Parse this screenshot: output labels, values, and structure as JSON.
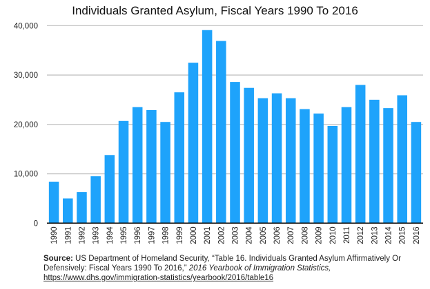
{
  "chart_data": {
    "type": "bar",
    "title": "Individuals Granted Asylum, Fiscal Years 1990 To 2016",
    "xlabel": "",
    "ylabel": "",
    "ylim": [
      0,
      40000
    ],
    "yticks": [
      "0",
      "10,000",
      "20,000",
      "30,000",
      "40,000"
    ],
    "grid": true,
    "color": "#1ea3fb",
    "categories": [
      "1990",
      "1991",
      "1992",
      "1993",
      "1994",
      "1995",
      "1996",
      "1997",
      "1998",
      "1999",
      "2000",
      "2001",
      "2002",
      "2003",
      "2004",
      "2005",
      "2006",
      "2007",
      "2008",
      "2009",
      "2010",
      "2011",
      "2012",
      "2013",
      "2014",
      "2015",
      "2016"
    ],
    "values": [
      8400,
      5000,
      6300,
      9500,
      13800,
      20700,
      23500,
      22900,
      20500,
      26500,
      32500,
      39100,
      36900,
      28600,
      27400,
      25300,
      26300,
      25300,
      23100,
      22200,
      19700,
      23500,
      28000,
      25000,
      23300,
      25900,
      20500
    ]
  },
  "source": {
    "label": "Source:",
    "text": " US Department of Homeland Security, “Table 16. Individuals Granted Asylum Affirmatively Or Defensively: Fiscal Years 1990 To 2016,” ",
    "publication": "2016 Yearbook of Immigration Statistics,",
    "url": "https://www.dhs.gov/immigration-statistics/yearbook/2016/table16"
  }
}
